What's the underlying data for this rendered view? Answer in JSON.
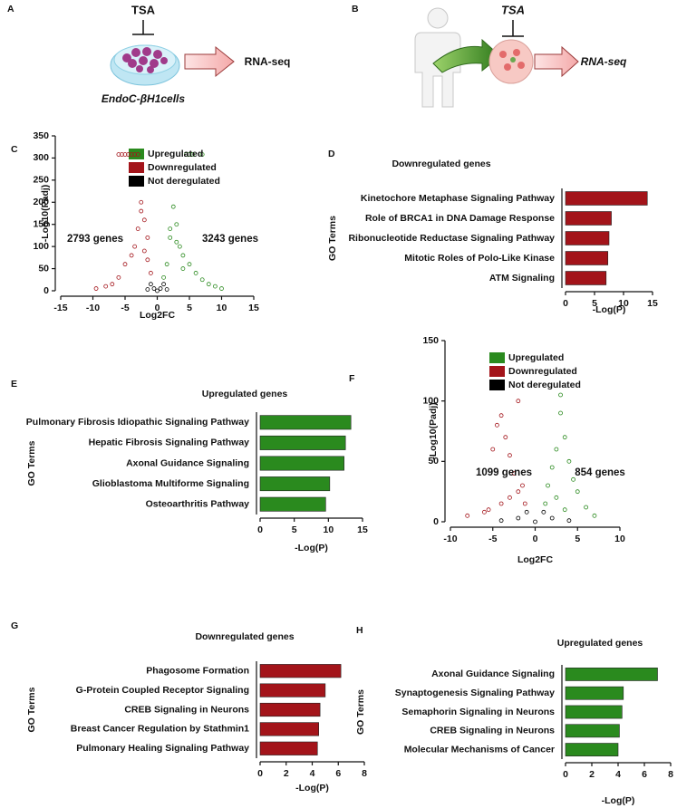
{
  "diagrams": [
    {
      "label": "A",
      "texts": [
        "TSA",
        "RNA-seq",
        "EndoC-βH1cells"
      ]
    },
    {
      "label": "B",
      "texts": [
        "TSA",
        "RNA-seq"
      ]
    }
  ],
  "chart_data": [
    {
      "type": "scatter",
      "label": "C",
      "xlabel": "Log2FC",
      "ylabel": "-Log10(Padj)",
      "xlim": [
        -15,
        15
      ],
      "ylim": [
        0,
        350
      ],
      "xticks": [
        -15,
        -10,
        -5,
        0,
        5,
        10,
        15
      ],
      "yticks": [
        0,
        50,
        100,
        150,
        200,
        250,
        300,
        350
      ],
      "legend": "top",
      "series": [
        {
          "name": "Upregulated",
          "color": "#2a8a1e",
          "x": [
            4.5,
            5,
            5.5,
            7,
            1,
            1.5,
            2,
            2.5,
            3,
            3.5,
            4,
            5,
            6,
            7,
            8,
            9,
            10,
            3,
            2,
            4
          ],
          "values": [
            308,
            308,
            308,
            308,
            30,
            60,
            120,
            190,
            150,
            100,
            80,
            60,
            40,
            25,
            15,
            10,
            5,
            110,
            140,
            50
          ]
        },
        {
          "name": "Downregulated",
          "color": "#a3141a",
          "x": [
            -6,
            -5.5,
            -5,
            -4.5,
            -4,
            -3.5,
            -3,
            -2.5,
            -2,
            -1.5,
            -1,
            -3,
            -2.5,
            -4,
            -5,
            -6,
            -7,
            -8,
            -9.5,
            -2,
            -1.5,
            -3.5
          ],
          "values": [
            308,
            308,
            308,
            308,
            308,
            308,
            308,
            180,
            160,
            120,
            40,
            140,
            200,
            80,
            60,
            30,
            15,
            10,
            5,
            90,
            70,
            100
          ]
        },
        {
          "name": "Not deregulated",
          "color": "#000000",
          "x": [
            -1,
            -0.5,
            0,
            0.5,
            1,
            -1.5,
            1.5
          ],
          "values": [
            15,
            5,
            0,
            5,
            15,
            3,
            3
          ]
        }
      ],
      "annotations": [
        {
          "text": "2793 genes",
          "color": "#a3141a"
        },
        {
          "text": "3243 genes",
          "color": "#2a8a1e"
        }
      ]
    },
    {
      "type": "bar",
      "label": "D",
      "orientation": "horizontal",
      "title": "Downregulated genes",
      "xlabel": "-Log(P)",
      "ylabel": "GO Terms",
      "categories": [
        "Kinetochore Metaphase Signaling Pathway",
        "Role of BRCA1 in DNA Damage Response",
        "Ribonucleotide Reductase Signaling Pathway",
        "Mitotic Roles of Polo-Like Kinase",
        "ATM Signaling"
      ],
      "values": [
        14.1,
        7.9,
        7.5,
        7.3,
        7.0
      ],
      "color": "#a3141a",
      "xlim": [
        0,
        15
      ],
      "xticks": [
        0,
        5,
        10,
        15
      ]
    },
    {
      "type": "bar",
      "label": "E",
      "orientation": "horizontal",
      "title": "Upregulated genes",
      "xlabel": "-Log(P)",
      "ylabel": "GO Terms",
      "categories": [
        "Pulmonary Fibrosis Idiopathic Signaling Pathway",
        "Hepatic Fibrosis Signaling Pathway",
        "Axonal Guidance Signaling",
        "Glioblastoma Multiforme Signaling",
        "Osteoarthritis Pathway"
      ],
      "values": [
        13.3,
        12.5,
        12.3,
        10.2,
        9.6
      ],
      "color": "#2a8a1e",
      "xlim": [
        0,
        15
      ],
      "xticks": [
        0,
        5,
        10,
        15
      ]
    },
    {
      "type": "scatter",
      "label": "F",
      "xlabel": "Log2FC",
      "ylabel": "-Log10(Padj)",
      "xlim": [
        -10,
        10
      ],
      "ylim": [
        0,
        150
      ],
      "xticks": [
        -10,
        -5,
        0,
        5,
        10
      ],
      "yticks": [
        0,
        50,
        100,
        150
      ],
      "legend": "top right",
      "series": [
        {
          "name": "Upregulated",
          "color": "#2a8a1e",
          "x": [
            1.2,
            1.5,
            2,
            2.5,
            3,
            3,
            3.5,
            4,
            4.5,
            5,
            6,
            7,
            2.5,
            3.5
          ],
          "values": [
            15,
            30,
            45,
            60,
            90,
            105,
            70,
            50,
            35,
            25,
            12,
            5,
            20,
            10
          ]
        },
        {
          "name": "Downregulated",
          "color": "#a3141a",
          "x": [
            -8,
            -6,
            -5,
            -4.5,
            -4,
            -3.5,
            -3,
            -2.5,
            -2,
            -1.5,
            -1.2,
            -3,
            -2,
            -4,
            -5.5
          ],
          "values": [
            5,
            8,
            60,
            80,
            88,
            70,
            55,
            40,
            100,
            30,
            15,
            20,
            25,
            15,
            10
          ]
        },
        {
          "name": "Not deregulated",
          "color": "#000000",
          "x": [
            -2,
            -1,
            0,
            1,
            2,
            -4,
            4
          ],
          "values": [
            3,
            8,
            0,
            8,
            3,
            1,
            1
          ]
        }
      ],
      "annotations": [
        {
          "text": "1099 genes",
          "color": "#a3141a"
        },
        {
          "text": "854 genes",
          "color": "#2a8a1e"
        }
      ]
    },
    {
      "type": "bar",
      "label": "G",
      "orientation": "horizontal",
      "title": "Downregulated genes",
      "xlabel": "-Log(P)",
      "ylabel": "GO Terms",
      "categories": [
        "Phagosome Formation",
        "G-Protein Coupled Receptor Signaling",
        "CREB Signaling in Neurons",
        "Breast Cancer Regulation by Stathmin1",
        "Pulmonary Healing Signaling Pathway"
      ],
      "values": [
        6.2,
        5.0,
        4.6,
        4.5,
        4.4
      ],
      "color": "#a3141a",
      "xlim": [
        0,
        8
      ],
      "xticks": [
        0,
        2,
        4,
        6,
        8
      ]
    },
    {
      "type": "bar",
      "label": "H",
      "orientation": "horizontal",
      "title": "Upregulated genes",
      "xlabel": "-Log(P)",
      "ylabel": "GO Terms",
      "categories": [
        "Axonal Guidance Signaling",
        "Synaptogenesis Signaling Pathway",
        "Semaphorin Signaling in Neurons",
        "CREB Signaling in Neurons",
        "Molecular Mechanisms of Cancer"
      ],
      "values": [
        7.0,
        4.4,
        4.3,
        4.1,
        4.0
      ],
      "color": "#2a8a1e",
      "xlim": [
        0,
        8
      ],
      "xticks": [
        0,
        2,
        4,
        6,
        8
      ]
    }
  ]
}
